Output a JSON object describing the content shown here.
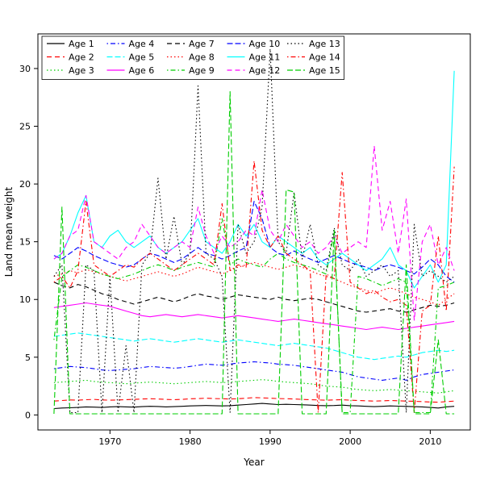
{
  "figure": {
    "background": "#ffffff",
    "axis_color": "#000000"
  },
  "chart_data": {
    "type": "line",
    "title": "",
    "xlabel": "Year",
    "ylabel": "Land mean weight",
    "xlim": [
      1961,
      2015
    ],
    "ylim": [
      -1.3,
      33
    ],
    "x_ticks": [
      1970,
      1980,
      1990,
      2000,
      2010
    ],
    "y_ticks": [
      0,
      5,
      10,
      15,
      20,
      25,
      30
    ],
    "grid": false,
    "legend": {
      "position": "top-left",
      "columns": 5,
      "rows": 3,
      "border": true,
      "fill_order": "column-major"
    },
    "x": [
      1963,
      1964,
      1965,
      1966,
      1967,
      1968,
      1969,
      1970,
      1971,
      1972,
      1973,
      1974,
      1975,
      1976,
      1977,
      1978,
      1979,
      1980,
      1981,
      1982,
      1983,
      1984,
      1985,
      1986,
      1987,
      1988,
      1989,
      1990,
      1991,
      1992,
      1993,
      1994,
      1995,
      1996,
      1997,
      1998,
      1999,
      2000,
      2001,
      2002,
      2003,
      2004,
      2005,
      2006,
      2007,
      2008,
      2009,
      2010,
      2011,
      2012,
      2013
    ],
    "series": [
      {
        "name": "Age 1",
        "color": "#000000",
        "linestyle": "solid",
        "values": [
          0.55,
          0.6,
          0.62,
          0.65,
          0.7,
          0.68,
          0.65,
          0.7,
          0.72,
          0.7,
          0.68,
          0.72,
          0.75,
          0.73,
          0.7,
          0.72,
          0.75,
          0.78,
          0.8,
          0.82,
          0.8,
          0.78,
          0.8,
          0.85,
          0.9,
          0.95,
          1.0,
          0.95,
          0.9,
          0.92,
          0.9,
          0.88,
          0.85,
          0.82,
          0.8,
          0.82,
          0.85,
          0.8,
          0.78,
          0.75,
          0.72,
          0.75,
          0.78,
          0.76,
          0.74,
          0.72,
          0.7,
          0.65,
          0.6,
          0.7,
          0.75
        ]
      },
      {
        "name": "Age 2",
        "color": "#FF0000",
        "linestyle": "dashed",
        "values": [
          1.2,
          1.25,
          1.3,
          1.28,
          1.32,
          1.35,
          1.3,
          1.28,
          1.3,
          1.32,
          1.35,
          1.38,
          1.4,
          1.38,
          1.35,
          1.32,
          1.35,
          1.4,
          1.42,
          1.45,
          1.42,
          1.4,
          1.38,
          1.4,
          1.45,
          1.5,
          1.48,
          1.45,
          1.42,
          1.4,
          1.38,
          1.35,
          1.32,
          1.3,
          1.28,
          1.3,
          1.32,
          1.28,
          1.25,
          1.22,
          1.2,
          1.22,
          1.25,
          1.22,
          1.2,
          1.18,
          1.15,
          1.12,
          1.1,
          1.15,
          1.2
        ]
      },
      {
        "name": "Age 3",
        "color": "#00CD00",
        "linestyle": "dotted",
        "values": [
          2.8,
          2.85,
          2.9,
          2.95,
          3.0,
          2.9,
          2.85,
          2.8,
          2.75,
          2.7,
          2.75,
          2.8,
          2.85,
          2.8,
          2.75,
          2.7,
          2.75,
          2.8,
          2.85,
          2.9,
          2.85,
          2.8,
          2.85,
          2.9,
          2.95,
          3.0,
          3.05,
          3.0,
          2.9,
          2.85,
          2.8,
          2.75,
          2.7,
          2.6,
          2.5,
          2.45,
          2.4,
          2.3,
          2.2,
          2.15,
          2.1,
          2.15,
          2.2,
          2.15,
          2.1,
          2.05,
          2.0,
          1.95,
          1.9,
          2.0,
          2.1
        ]
      },
      {
        "name": "Age 4",
        "color": "#0000FF",
        "linestyle": "dotdash",
        "values": [
          4.0,
          4.1,
          4.2,
          4.15,
          4.1,
          4.0,
          3.9,
          3.85,
          3.9,
          3.95,
          4.0,
          4.1,
          4.2,
          4.15,
          4.1,
          4.05,
          4.1,
          4.2,
          4.3,
          4.4,
          4.35,
          4.3,
          4.4,
          4.5,
          4.55,
          4.6,
          4.55,
          4.5,
          4.4,
          4.35,
          4.3,
          4.2,
          4.1,
          4.0,
          3.9,
          3.8,
          3.7,
          3.5,
          3.3,
          3.2,
          3.1,
          3.0,
          3.1,
          3.2,
          3.0,
          3.3,
          3.5,
          3.6,
          3.7,
          3.8,
          3.9
        ]
      },
      {
        "name": "Age 5",
        "color": "#00FFFF",
        "linestyle": "longdash",
        "values": [
          6.8,
          6.9,
          7.0,
          7.1,
          7.0,
          6.9,
          6.8,
          6.7,
          6.6,
          6.5,
          6.4,
          6.5,
          6.6,
          6.5,
          6.4,
          6.3,
          6.4,
          6.5,
          6.6,
          6.5,
          6.4,
          6.3,
          6.4,
          6.5,
          6.4,
          6.3,
          6.2,
          6.1,
          6.0,
          6.1,
          6.2,
          6.1,
          6.0,
          5.9,
          5.8,
          5.6,
          5.4,
          5.2,
          5.0,
          4.9,
          4.8,
          4.9,
          5.0,
          5.1,
          5.0,
          5.2,
          5.4,
          5.5,
          5.6,
          5.5,
          5.6
        ]
      },
      {
        "name": "Age 6",
        "color": "#FF00FF",
        "linestyle": "solid",
        "values": [
          9.3,
          9.4,
          9.5,
          9.6,
          9.7,
          9.6,
          9.5,
          9.4,
          9.2,
          9.0,
          8.8,
          8.6,
          8.5,
          8.6,
          8.7,
          8.6,
          8.5,
          8.6,
          8.7,
          8.6,
          8.5,
          8.4,
          8.5,
          8.6,
          8.5,
          8.4,
          8.3,
          8.2,
          8.1,
          8.2,
          8.3,
          8.2,
          8.1,
          8.0,
          7.9,
          7.8,
          7.7,
          7.6,
          7.5,
          7.4,
          7.5,
          7.6,
          7.5,
          7.4,
          7.5,
          7.6,
          7.7,
          7.8,
          7.9,
          8.0,
          8.1
        ]
      },
      {
        "name": "Age 7",
        "color": "#000000",
        "linestyle": "dashed",
        "values": [
          11.5,
          11.2,
          11.0,
          11.3,
          11.1,
          10.8,
          10.5,
          10.3,
          10.0,
          9.8,
          9.6,
          9.8,
          10.0,
          10.2,
          10.0,
          9.8,
          10.0,
          10.3,
          10.5,
          10.3,
          10.2,
          10.0,
          10.2,
          10.4,
          10.3,
          10.2,
          10.1,
          10.0,
          10.2,
          10.0,
          9.9,
          10.0,
          10.1,
          10.0,
          9.8,
          9.6,
          9.4,
          9.2,
          9.0,
          8.9,
          9.0,
          9.1,
          9.2,
          9.0,
          8.9,
          9.1,
          9.3,
          9.5,
          9.4,
          9.5,
          9.7
        ]
      },
      {
        "name": "Age 8",
        "color": "#FF0000",
        "linestyle": "dotted",
        "values": [
          12.0,
          12.2,
          12.5,
          12.3,
          12.6,
          12.4,
          12.2,
          12.0,
          11.8,
          11.6,
          11.8,
          12.0,
          12.2,
          12.4,
          12.2,
          12.0,
          12.2,
          12.5,
          12.8,
          12.6,
          12.4,
          12.2,
          12.5,
          12.8,
          13.0,
          13.2,
          13.0,
          12.8,
          12.6,
          12.8,
          13.0,
          12.8,
          12.5,
          12.2,
          12.0,
          11.8,
          11.5,
          11.2,
          11.0,
          10.8,
          10.5,
          10.8,
          11.0,
          10.8,
          10.5,
          10.2,
          10.0,
          9.8,
          9.5,
          10.0,
          10.5
        ]
      },
      {
        "name": "Age 9",
        "color": "#00CD00",
        "linestyle": "dotdash",
        "values": [
          6.5,
          12.0,
          12.5,
          13.0,
          12.8,
          12.5,
          12.2,
          12.0,
          11.8,
          12.0,
          12.2,
          12.5,
          12.8,
          13.0,
          12.8,
          12.5,
          12.8,
          13.0,
          13.2,
          13.0,
          12.8,
          17.0,
          13.0,
          13.5,
          13.2,
          13.0,
          12.8,
          13.5,
          14.0,
          13.5,
          13.2,
          13.0,
          12.8,
          12.5,
          12.2,
          15.8,
          0.2,
          0.2,
          12.0,
          11.8,
          11.5,
          11.2,
          11.5,
          11.8,
          11.5,
          0.2,
          0.2,
          0.2,
          11.0,
          11.2,
          11.5
        ]
      },
      {
        "name": "Age 10",
        "color": "#0000FF",
        "linestyle": "longdash",
        "values": [
          13.8,
          13.5,
          14.0,
          14.5,
          14.2,
          13.8,
          13.5,
          13.2,
          13.0,
          12.8,
          13.0,
          13.5,
          14.0,
          13.8,
          13.5,
          13.2,
          13.5,
          14.0,
          14.5,
          14.0,
          13.8,
          13.5,
          13.8,
          14.2,
          14.5,
          18.5,
          17.0,
          14.5,
          14.0,
          13.8,
          14.2,
          13.8,
          13.5,
          13.2,
          13.5,
          13.8,
          13.5,
          13.2,
          13.0,
          12.8,
          12.5,
          12.8,
          13.0,
          12.8,
          12.5,
          12.2,
          12.8,
          13.5,
          13.0,
          12.0,
          11.5
        ]
      },
      {
        "name": "Age 11",
        "color": "#00FFFF",
        "linestyle": "solid",
        "values": [
          13.5,
          14.0,
          15.5,
          17.5,
          19.0,
          15.0,
          14.5,
          15.5,
          16.0,
          15.0,
          14.5,
          15.0,
          15.5,
          14.5,
          14.0,
          14.5,
          15.0,
          16.0,
          17.0,
          15.0,
          14.5,
          14.0,
          15.0,
          16.5,
          15.5,
          16.5,
          15.0,
          14.5,
          15.5,
          15.0,
          14.5,
          14.0,
          14.5,
          13.5,
          13.0,
          13.5,
          14.0,
          13.5,
          13.0,
          12.5,
          13.0,
          13.5,
          14.5,
          13.0,
          12.5,
          11.0,
          12.0,
          13.0,
          11.5,
          13.0,
          29.8
        ]
      },
      {
        "name": "Age 12",
        "color": "#FF00FF",
        "linestyle": "dashed",
        "values": [
          13.5,
          14.0,
          15.5,
          16.0,
          19.0,
          15.0,
          14.5,
          14.0,
          13.5,
          14.5,
          15.0,
          16.5,
          15.5,
          14.5,
          14.0,
          14.5,
          15.0,
          14.5,
          18.0,
          15.5,
          14.0,
          15.5,
          14.5,
          15.0,
          16.0,
          15.5,
          19.5,
          16.0,
          15.0,
          16.5,
          15.5,
          14.5,
          15.0,
          14.0,
          14.5,
          15.5,
          14.0,
          14.5,
          15.0,
          14.5,
          23.3,
          16.0,
          18.5,
          14.0,
          18.7,
          8.2,
          15.0,
          16.5,
          13.0,
          14.5,
          12.5
        ]
      },
      {
        "name": "Age 13",
        "color": "#000000",
        "linestyle": "dotted",
        "values": [
          12.0,
          13.0,
          0.2,
          0.2,
          13.0,
          12.5,
          0.2,
          12.0,
          0.2,
          6.0,
          0.2,
          13.0,
          14.0,
          20.5,
          13.5,
          17.2,
          13.0,
          14.0,
          28.5,
          14.0,
          13.5,
          12.0,
          0.2,
          16.5,
          14.0,
          15.0,
          18.0,
          31.7,
          15.0,
          14.0,
          19.3,
          13.5,
          16.5,
          13.0,
          12.5,
          16.2,
          13.0,
          12.5,
          13.5,
          12.0,
          12.5,
          13.0,
          12.0,
          12.5,
          0.2,
          16.5,
          12.0,
          12.5,
          12.0,
          11.5,
          12.0
        ]
      },
      {
        "name": "Age 14",
        "color": "#FF0000",
        "linestyle": "dotdash",
        "values": [
          11.5,
          12.0,
          11.0,
          12.5,
          18.5,
          13.0,
          12.5,
          12.0,
          12.5,
          13.0,
          12.8,
          13.5,
          14.0,
          13.5,
          13.0,
          12.5,
          13.0,
          13.5,
          14.0,
          13.5,
          13.0,
          18.3,
          12.5,
          13.0,
          12.8,
          22.0,
          16.0,
          14.5,
          15.5,
          14.0,
          13.5,
          13.0,
          12.5,
          0.2,
          12.2,
          11.8,
          21.0,
          11.5,
          11.0,
          10.5,
          10.8,
          10.2,
          9.8,
          10.0,
          9.5,
          0.2,
          9.0,
          9.5,
          15.5,
          9.0,
          21.5
        ]
      },
      {
        "name": "Age 15",
        "color": "#00CD00",
        "linestyle": "longdash",
        "values": [
          0.1,
          18.0,
          0.1,
          0.1,
          0.1,
          0.1,
          0.1,
          0.1,
          0.1,
          0.1,
          0.1,
          0.1,
          0.1,
          0.1,
          0.1,
          0.1,
          0.1,
          0.1,
          0.1,
          0.1,
          0.1,
          0.1,
          28.0,
          0.1,
          0.1,
          0.1,
          0.1,
          0.1,
          0.1,
          19.5,
          19.3,
          0.1,
          0.1,
          0.1,
          0.1,
          16.0,
          0.1,
          0.1,
          0.1,
          0.1,
          0.1,
          0.1,
          0.1,
          0.1,
          13.0,
          0.1,
          0.1,
          0.1,
          6.5,
          0.1,
          0.1
        ]
      }
    ]
  }
}
